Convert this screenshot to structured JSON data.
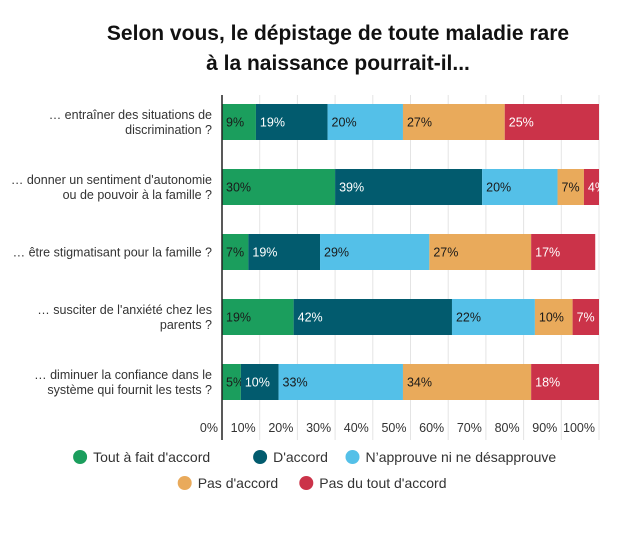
{
  "chart_data": {
    "type": "bar",
    "orientation": "horizontal",
    "stacked": true,
    "title": [
      "Selon vous, le dépistage de toute maladie rare",
      "à la naissance pourrait-il..."
    ],
    "categories": [
      [
        "… entraîner des situations de",
        "discrimination ?"
      ],
      [
        "… donner un sentiment d'autonomie",
        "ou de pouvoir à la famille ?"
      ],
      [
        "… être stigmatisant pour la famille ?"
      ],
      [
        "… susciter de l'anxiété chez les",
        "parents ?"
      ],
      [
        "… diminuer la confiance dans le",
        "système qui fournit les tests ?"
      ]
    ],
    "series": [
      {
        "name": "Tout à fait d'accord",
        "color": "#1b9e5d",
        "label_color": "#1a1a1a",
        "values": [
          9,
          30,
          7,
          19,
          5
        ]
      },
      {
        "name": "D'accord",
        "color": "#025b6e",
        "label_color": "#ffffff",
        "values": [
          19,
          39,
          19,
          42,
          10
        ]
      },
      {
        "name": "N’approuve ni ne désapprouve",
        "color": "#54c0e8",
        "label_color": "#1a1a1a",
        "values": [
          20,
          20,
          29,
          22,
          33
        ]
      },
      {
        "name": "Pas d'accord",
        "color": "#e9aa5b",
        "label_color": "#1a1a1a",
        "values": [
          27,
          7,
          27,
          10,
          34
        ]
      },
      {
        "name": "Pas du tout d'accord",
        "color": "#cb3349",
        "label_color": "#ffffff",
        "values": [
          25,
          4,
          17,
          7,
          18
        ]
      }
    ],
    "xlim": [
      0,
      100
    ],
    "xticks": [
      "0%",
      "10%",
      "20%",
      "30%",
      "40%",
      "50%",
      "60%",
      "70%",
      "80%",
      "90%",
      "100%"
    ],
    "grid": true,
    "legend": "bottom"
  }
}
